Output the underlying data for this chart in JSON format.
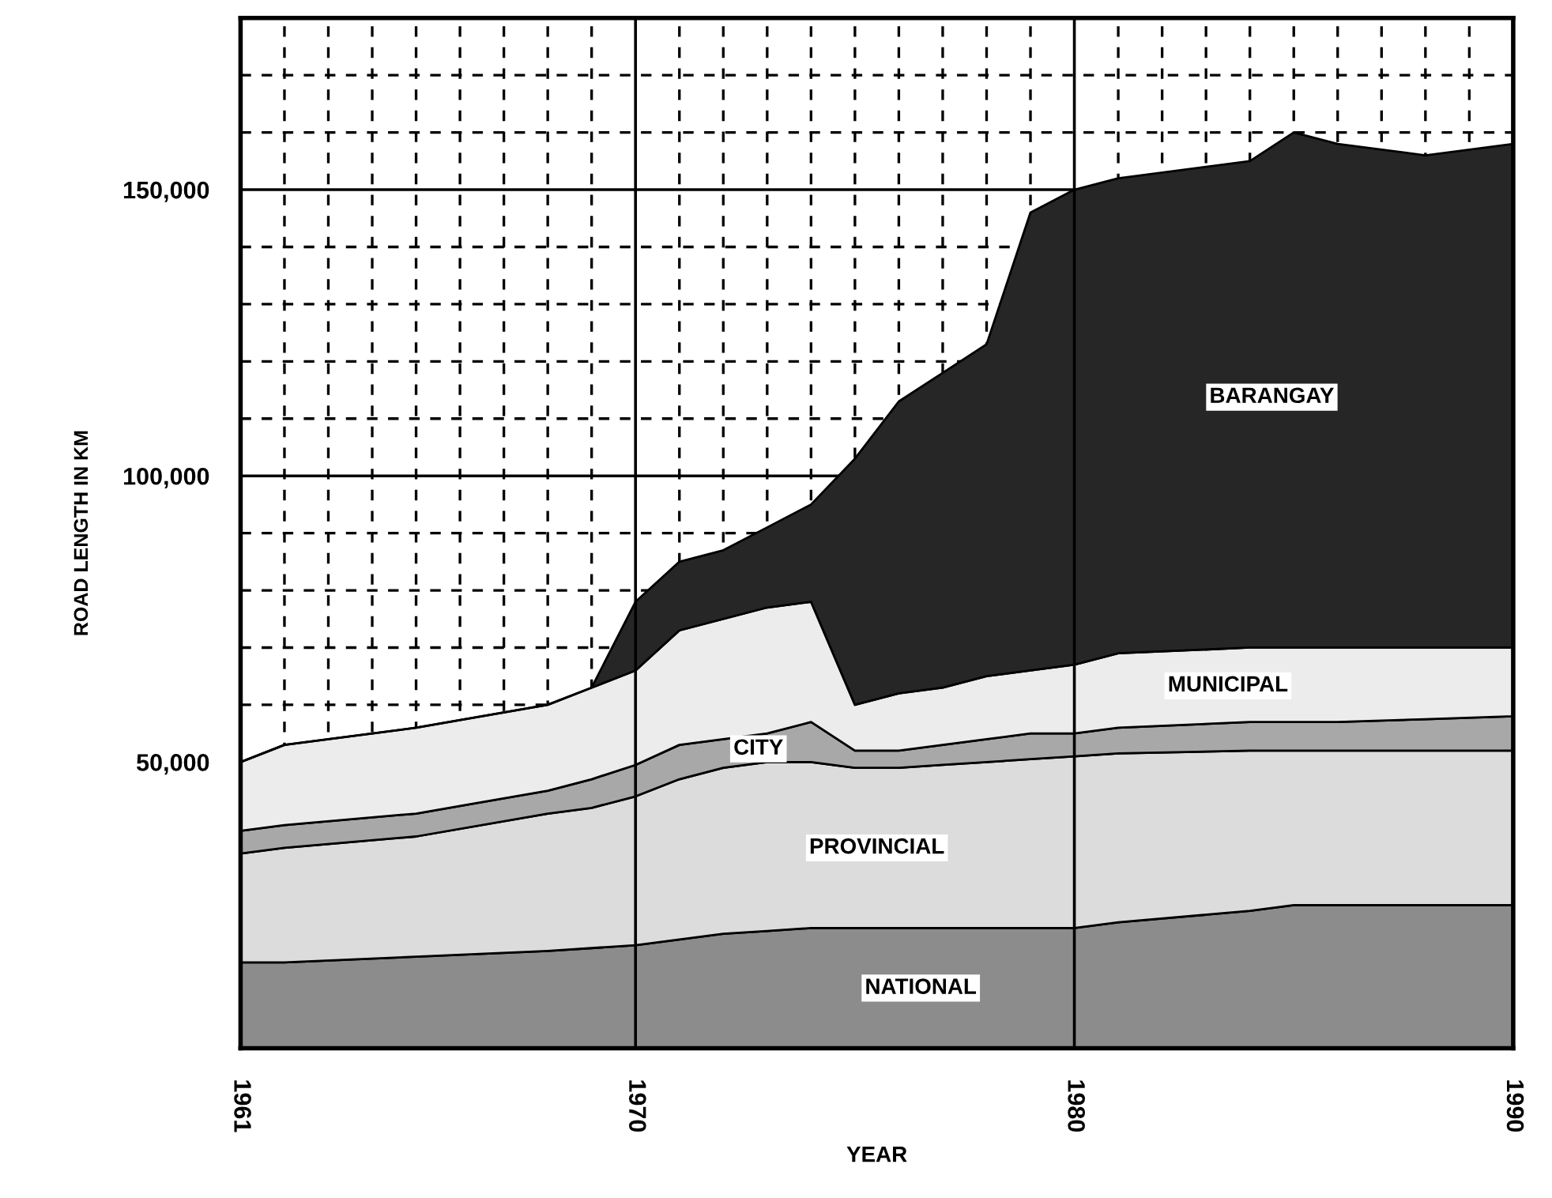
{
  "chart_data": {
    "type": "area",
    "stacked": true,
    "xlabel": "YEAR",
    "ylabel": "ROAD LENGTH IN KM",
    "x": [
      1961,
      1962,
      1965,
      1968,
      1969,
      1970,
      1971,
      1972,
      1973,
      1974,
      1975,
      1976,
      1977,
      1978,
      1979,
      1980,
      1981,
      1984,
      1985,
      1986,
      1988,
      1990
    ],
    "series": [
      {
        "name": "NATIONAL",
        "color": "#8c8c8c",
        "values": [
          15000,
          15000,
          16000,
          17000,
          17500,
          18000,
          19000,
          20000,
          20500,
          21000,
          21000,
          21000,
          21000,
          21000,
          21000,
          21000,
          22000,
          24000,
          25000,
          25000,
          25000,
          25000
        ]
      },
      {
        "name": "PROVINCIAL",
        "color": "#dcdcdc",
        "values": [
          19000,
          20000,
          21000,
          24000,
          24500,
          26000,
          28000,
          29000,
          29500,
          29000,
          28000,
          28000,
          28500,
          29000,
          29500,
          30000,
          29500,
          28000,
          27000,
          27000,
          27000,
          27000
        ]
      },
      {
        "name": "CITY",
        "color": "#a8a8a8",
        "values": [
          4000,
          4000,
          4000,
          4000,
          5000,
          5500,
          6000,
          5000,
          5000,
          7000,
          3000,
          3000,
          3500,
          4000,
          4500,
          4000,
          4500,
          5000,
          5000,
          5000,
          5500,
          6000
        ]
      },
      {
        "name": "MUNICIPAL",
        "color": "#ececec",
        "values": [
          12000,
          14000,
          15000,
          15000,
          16000,
          16500,
          20000,
          21000,
          22000,
          21000,
          8000,
          10000,
          10000,
          11000,
          11000,
          12000,
          13000,
          13000,
          13000,
          13000,
          12500,
          12000
        ]
      },
      {
        "name": "BARANGAY",
        "color": "#262626",
        "values": [
          0,
          0,
          0,
          0,
          0,
          12000,
          12000,
          12000,
          14000,
          17000,
          43000,
          51000,
          55000,
          58000,
          80000,
          83000,
          83000,
          85000,
          90000,
          88000,
          86000,
          88000
        ]
      }
    ],
    "xlim": [
      1961,
      1990
    ],
    "xticks": [
      1961,
      {
        "value": 1962,
        "label": null
      },
      {
        "value": 1963,
        "label": null
      },
      {
        "value": 1964,
        "label": null
      },
      {
        "value": 1965,
        "label": null
      },
      {
        "value": 1966,
        "label": null
      },
      {
        "value": 1967,
        "label": null
      },
      {
        "value": 1968,
        "label": null
      },
      {
        "value": 1969,
        "label": null
      },
      1970,
      {
        "value": 1971,
        "label": null
      },
      {
        "value": 1972,
        "label": null
      },
      {
        "value": 1973,
        "label": null
      },
      {
        "value": 1974,
        "label": null
      },
      {
        "value": 1975,
        "label": null
      },
      {
        "value": 1976,
        "label": null
      },
      {
        "value": 1977,
        "label": null
      },
      {
        "value": 1978,
        "label": null
      },
      {
        "value": 1979,
        "label": null
      },
      1980,
      {
        "value": 1981,
        "label": null
      },
      {
        "value": 1982,
        "label": null
      },
      {
        "value": 1983,
        "label": null
      },
      {
        "value": 1984,
        "label": null
      },
      {
        "value": 1985,
        "label": null
      },
      {
        "value": 1986,
        "label": null
      },
      {
        "value": 1987,
        "label": null
      },
      {
        "value": 1988,
        "label": null
      },
      {
        "value": 1989,
        "label": null
      },
      1990
    ],
    "ylim": [
      0,
      180000
    ],
    "yticks": [
      {
        "value": 50000,
        "label": "50,000"
      },
      {
        "value": 60000,
        "label": null
      },
      {
        "value": 70000,
        "label": null
      },
      {
        "value": 80000,
        "label": null
      },
      {
        "value": 90000,
        "label": null
      },
      {
        "value": 100000,
        "label": "100,000"
      },
      {
        "value": 110000,
        "label": null
      },
      {
        "value": 120000,
        "label": null
      },
      {
        "value": 130000,
        "label": null
      },
      {
        "value": 140000,
        "label": null
      },
      {
        "value": 150000,
        "label": "150,000"
      },
      {
        "value": 160000,
        "label": null
      },
      {
        "value": 170000,
        "label": null
      }
    ],
    "grid": true,
    "legend": false
  }
}
